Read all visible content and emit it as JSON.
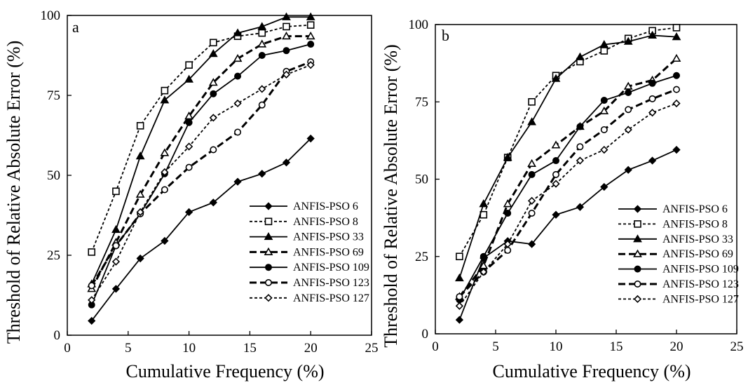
{
  "chart_data": [
    {
      "type": "line",
      "panel_label": "a",
      "xlabel": "Cumulative Frequency (%)",
      "ylabel": "Threshold of Relative Absolute Error (%)",
      "xlim": [
        0,
        25
      ],
      "ylim": [
        0,
        100
      ],
      "xticks": [
        "0",
        "5",
        "10",
        "15",
        "20",
        "25"
      ],
      "yticks": [
        "0",
        "25",
        "50",
        "75",
        "100"
      ],
      "grid": false,
      "legend": "bottom-right",
      "x": [
        2,
        4,
        6,
        8,
        10,
        12,
        14,
        16,
        18,
        20
      ],
      "series": [
        {
          "name": "ANFIS-PSO 6",
          "marker": "diamond-filled",
          "dash": "solid",
          "values": [
            4.5,
            14.5,
            24,
            29.5,
            38.5,
            41.5,
            48,
            50.5,
            54,
            61.5
          ]
        },
        {
          "name": "ANFIS-PSO 8",
          "marker": "square-open",
          "dash": "dotted",
          "values": [
            26,
            45,
            65.5,
            76.5,
            84.5,
            91.5,
            93.5,
            94.5,
            96.5,
            97
          ]
        },
        {
          "name": "ANFIS-PSO 33",
          "marker": "triangle-filled",
          "dash": "solid",
          "values": [
            16,
            33,
            56,
            73.5,
            80,
            88,
            94.5,
            96.5,
            99.5,
            99.5
          ]
        },
        {
          "name": "ANFIS-PSO 69",
          "marker": "triangle-open",
          "dash": "dashed",
          "values": [
            14.5,
            29,
            44,
            57,
            68.5,
            79,
            86.5,
            91,
            93.5,
            93.5
          ]
        },
        {
          "name": "ANFIS-PSO 109",
          "marker": "circle-filled",
          "dash": "solid",
          "values": [
            9.5,
            28,
            38,
            50.5,
            66.5,
            75.5,
            81,
            87.5,
            89,
            91
          ]
        },
        {
          "name": "ANFIS-PSO 123",
          "marker": "circle-open",
          "dash": "dashed",
          "values": [
            15.5,
            28,
            38,
            45.5,
            52.5,
            58,
            63.5,
            72,
            82.5,
            85.5
          ]
        },
        {
          "name": "ANFIS-PSO 127",
          "marker": "diamond-open",
          "dash": "dotted",
          "values": [
            11,
            23,
            38.5,
            51,
            59,
            68,
            72.5,
            77,
            81.5,
            84.5
          ]
        }
      ]
    },
    {
      "type": "line",
      "panel_label": "b",
      "xlabel": "Cumulative Frequency (%)",
      "ylabel": "Threshold of Relative Absolute Error (%)",
      "xlim": [
        0,
        25
      ],
      "ylim": [
        0,
        100
      ],
      "xticks": [
        "0",
        "5",
        "10",
        "15",
        "20",
        "25"
      ],
      "yticks": [
        "0",
        "25",
        "50",
        "75",
        "100"
      ],
      "grid": false,
      "legend": "bottom-right",
      "x": [
        2,
        4,
        6,
        8,
        10,
        12,
        14,
        16,
        18,
        20
      ],
      "series": [
        {
          "name": "ANFIS-PSO 6",
          "marker": "diamond-filled",
          "dash": "solid",
          "values": [
            4.5,
            24.5,
            30,
            29,
            38.5,
            41,
            47.5,
            53,
            56,
            59.5
          ]
        },
        {
          "name": "ANFIS-PSO 8",
          "marker": "square-open",
          "dash": "dotted",
          "values": [
            25,
            38.5,
            57,
            75,
            83.5,
            88,
            91.5,
            95.5,
            98,
            99
          ]
        },
        {
          "name": "ANFIS-PSO 33",
          "marker": "triangle-filled",
          "dash": "solid",
          "values": [
            18,
            42,
            57,
            68.5,
            82.5,
            89.5,
            93.5,
            94.5,
            96.5,
            96
          ]
        },
        {
          "name": "ANFIS-PSO 69",
          "marker": "triangle-open",
          "dash": "dashed",
          "values": [
            12,
            22,
            42,
            55,
            61,
            67,
            72,
            80,
            82,
            89
          ]
        },
        {
          "name": "ANFIS-PSO 109",
          "marker": "circle-filled",
          "dash": "solid",
          "values": [
            11,
            25,
            39,
            51.5,
            56,
            67,
            75.5,
            78,
            81,
            83.5
          ]
        },
        {
          "name": "ANFIS-PSO 123",
          "marker": "circle-open",
          "dash": "dashed",
          "values": [
            12,
            20,
            27,
            39,
            51.5,
            60.5,
            66,
            72.5,
            76,
            79
          ]
        },
        {
          "name": "ANFIS-PSO 127",
          "marker": "diamond-open",
          "dash": "dotted",
          "values": [
            9,
            20,
            29,
            43,
            48.5,
            56,
            59.5,
            66,
            71.5,
            74.5
          ]
        }
      ]
    }
  ]
}
